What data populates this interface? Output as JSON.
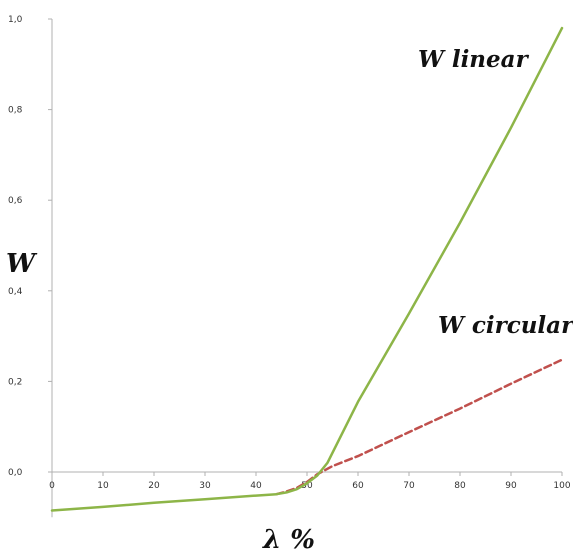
{
  "chart_data": {
    "type": "line",
    "ylabel": "W",
    "xlabel": "λ %",
    "xlim": [
      0,
      100
    ],
    "ylim": [
      -0.1,
      1.0
    ],
    "x_ticks": [
      "0",
      "10",
      "20",
      "30",
      "40",
      "50",
      "60",
      "70",
      "80",
      "90",
      "100"
    ],
    "y_ticks": [
      "1,0",
      "0,8",
      "0,6",
      "0,4",
      "0,2",
      "0,0"
    ],
    "grid": false,
    "series": [
      {
        "name": "W linear",
        "color": "#8db548",
        "style": "solid",
        "x": [
          0,
          10,
          20,
          30,
          40,
          44,
          46,
          48,
          50,
          52,
          54,
          56,
          58,
          60,
          70,
          80,
          90,
          100
        ],
        "y": [
          -0.085,
          -0.077,
          -0.068,
          -0.06,
          -0.052,
          -0.049,
          -0.045,
          -0.038,
          -0.025,
          -0.008,
          0.02,
          0.065,
          0.11,
          0.155,
          0.35,
          0.55,
          0.76,
          0.98
        ]
      },
      {
        "name": "W circular",
        "color": "#c0504d",
        "style": "dashed",
        "x": [
          44,
          46,
          48,
          50,
          52,
          55,
          60,
          70,
          80,
          90,
          100
        ],
        "y": [
          -0.049,
          -0.043,
          -0.035,
          -0.022,
          -0.005,
          0.013,
          0.035,
          0.088,
          0.14,
          0.195,
          0.248
        ]
      }
    ]
  }
}
